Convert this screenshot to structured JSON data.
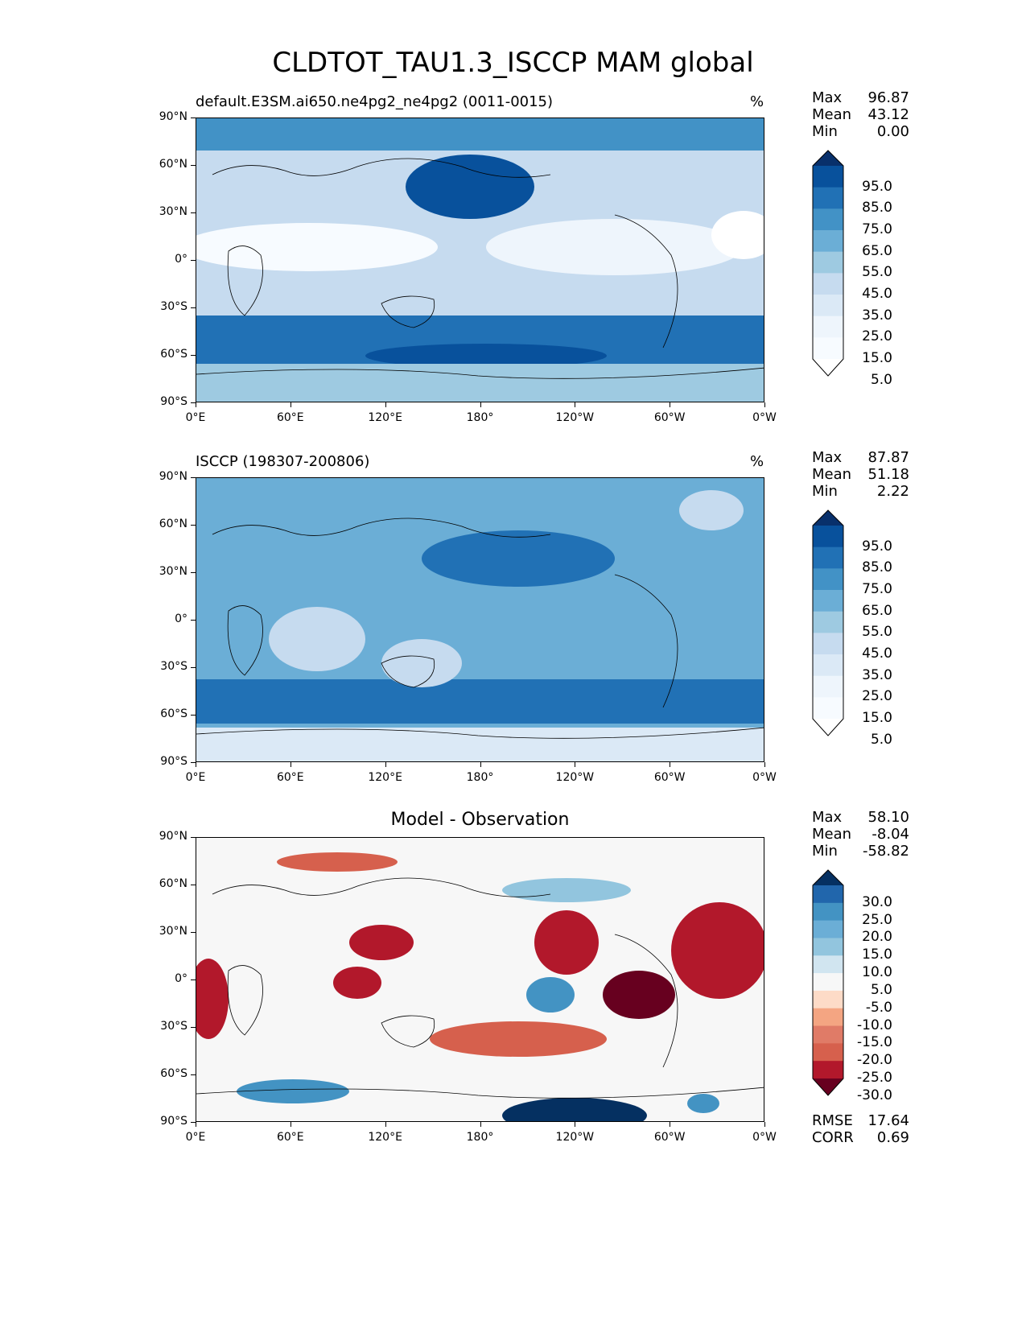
{
  "title": "CLDTOT_TAU1.3_ISCCP MAM global",
  "lat_ticks": [
    "90°N",
    "60°N",
    "30°N",
    "0°",
    "30°S",
    "60°S",
    "90°S"
  ],
  "lon_ticks": [
    "0°E",
    "60°E",
    "120°E",
    "180°",
    "120°W",
    "60°W",
    "0°W"
  ],
  "panels": [
    {
      "title_left": "default.E3SM.ai650.ne4pg2_ne4pg2 (0011-0015)",
      "title_center": "",
      "units": "%",
      "stats": {
        "max_label": "Max",
        "max": "96.87",
        "mean_label": "Mean",
        "mean": "43.12",
        "min_label": "Min",
        "min": "0.00"
      },
      "colorbar": {
        "labels": [
          "95.0",
          "85.0",
          "75.0",
          "65.0",
          "55.0",
          "45.0",
          "35.0",
          "25.0",
          "15.0",
          "5.0"
        ],
        "colors": [
          "#08306b",
          "#08519c",
          "#2171b5",
          "#4292c6",
          "#6baed6",
          "#9ecae1",
          "#c6dbef",
          "#dbe9f6",
          "#eef5fc",
          "#f7fbff",
          "#ffffff"
        ]
      },
      "error": null
    },
    {
      "title_left": "ISCCP (198307-200806)",
      "title_center": "",
      "units": "%",
      "stats": {
        "max_label": "Max",
        "max": "87.87",
        "mean_label": "Mean",
        "mean": "51.18",
        "min_label": "Min",
        "min": "2.22"
      },
      "colorbar": {
        "labels": [
          "95.0",
          "85.0",
          "75.0",
          "65.0",
          "55.0",
          "45.0",
          "35.0",
          "25.0",
          "15.0",
          "5.0"
        ],
        "colors": [
          "#08306b",
          "#08519c",
          "#2171b5",
          "#4292c6",
          "#6baed6",
          "#9ecae1",
          "#c6dbef",
          "#dbe9f6",
          "#eef5fc",
          "#f7fbff",
          "#ffffff"
        ]
      },
      "error": null
    },
    {
      "title_left": "",
      "title_center": "Model - Observation",
      "units": "",
      "stats": {
        "max_label": "Max",
        "max": "58.10",
        "mean_label": "Mean",
        "mean": "-8.04",
        "min_label": "Min",
        "min": "-58.82"
      },
      "colorbar": {
        "labels": [
          "30.0",
          "25.0",
          "20.0",
          "15.0",
          "10.0",
          "5.0",
          "-5.0",
          "-10.0",
          "-15.0",
          "-20.0",
          "-25.0",
          "-30.0"
        ],
        "colors": [
          "#053061",
          "#2166ac",
          "#4393c3",
          "#6baed6",
          "#92c5de",
          "#d1e5f0",
          "#f7f7f7",
          "#fddbc7",
          "#f4a582",
          "#e07b67",
          "#d6604d",
          "#b2182b",
          "#67001f"
        ]
      },
      "error": {
        "rmse_label": "RMSE",
        "rmse": "17.64",
        "corr_label": "CORR",
        "corr": "0.69"
      }
    }
  ]
}
